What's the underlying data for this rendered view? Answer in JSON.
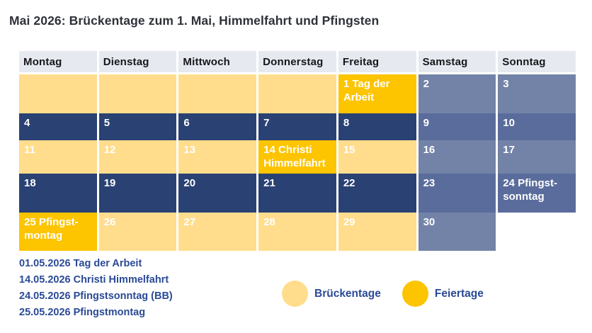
{
  "title": "Mai 2026: Brückentage zum 1. Mai, Himmelfahrt und Pfingsten",
  "colors": {
    "bridge": "#FFDD8C",
    "holiday": "#FDC400",
    "work": "#2A4173",
    "weekend_light": "#7383A7",
    "weekend_dark": "#5A6C9B",
    "header_bg": "#E6EAF0",
    "text_blue": "#2A4A96"
  },
  "calendar": {
    "weekdays": [
      "Montag",
      "Dienstag",
      "Mittwoch",
      "Donnerstag",
      "Freitag",
      "Samstag",
      "Sonntag"
    ],
    "weeks": [
      [
        {
          "text": "",
          "type": "bridge"
        },
        {
          "text": "",
          "type": "bridge"
        },
        {
          "text": "",
          "type": "bridge"
        },
        {
          "text": "",
          "type": "bridge"
        },
        {
          "text": "1 Tag der Arbeit",
          "type": "holiday"
        },
        {
          "text": "2",
          "type": "weekend_light"
        },
        {
          "text": "3",
          "type": "weekend_light"
        }
      ],
      [
        {
          "text": "4",
          "type": "work"
        },
        {
          "text": "5",
          "type": "work"
        },
        {
          "text": "6",
          "type": "work"
        },
        {
          "text": "7",
          "type": "work"
        },
        {
          "text": "8",
          "type": "work"
        },
        {
          "text": "9",
          "type": "weekend_dark"
        },
        {
          "text": "10",
          "type": "weekend_dark"
        }
      ],
      [
        {
          "text": "11",
          "type": "bridge"
        },
        {
          "text": "12",
          "type": "bridge"
        },
        {
          "text": "13",
          "type": "bridge"
        },
        {
          "text": "14 Christi Himmelfahrt",
          "type": "holiday"
        },
        {
          "text": "15",
          "type": "bridge"
        },
        {
          "text": "16",
          "type": "weekend_light"
        },
        {
          "text": "17",
          "type": "weekend_light"
        }
      ],
      [
        {
          "text": "18",
          "type": "work"
        },
        {
          "text": "19",
          "type": "work"
        },
        {
          "text": "20",
          "type": "work"
        },
        {
          "text": "21",
          "type": "work"
        },
        {
          "text": "22",
          "type": "work"
        },
        {
          "text": "23",
          "type": "weekend_dark"
        },
        {
          "text": "24 Pfingst-sonntag",
          "type": "weekend_dark"
        }
      ],
      [
        {
          "text": "25 Pfingst-montag",
          "type": "holiday"
        },
        {
          "text": "26",
          "type": "bridge"
        },
        {
          "text": "27",
          "type": "bridge"
        },
        {
          "text": "28",
          "type": "bridge"
        },
        {
          "text": "29",
          "type": "bridge"
        },
        {
          "text": "30",
          "type": "weekend_light"
        },
        {
          "text": "",
          "type": "empty"
        }
      ]
    ]
  },
  "holiday_list": [
    "01.05.2026 Tag der Arbeit",
    "14.05.2026 Christi Himmelfahrt",
    "24.05.2026 Pfingstsonntag (BB)",
    "25.05.2026 Pfingstmontag"
  ],
  "legend": [
    {
      "label": "Brückentage",
      "color": "#FFDD8C"
    },
    {
      "label": "Feiertage",
      "color": "#FDC400"
    }
  ]
}
